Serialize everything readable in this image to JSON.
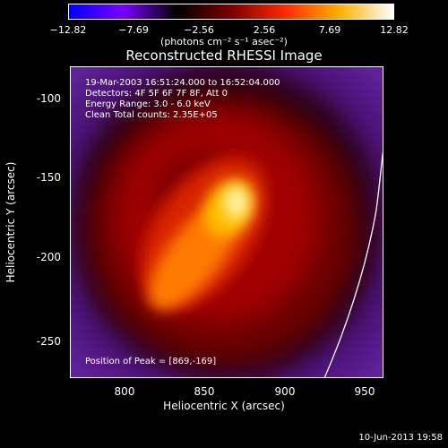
{
  "colorbar": {
    "ticks": [
      "−12.82",
      "−7.69",
      "−2.56",
      "2.56",
      "7.69",
      "12.82"
    ],
    "unit": "(photons cm⁻² s⁻¹ asec⁻²)",
    "min": -12.82,
    "max": 12.82,
    "colors": [
      "#0000ff",
      "#7a00ff",
      "#000000",
      "#7a0000",
      "#ff2a00",
      "#ffb000",
      "#ffffff"
    ]
  },
  "title": "Reconstructed RHESSI Image",
  "annotations": {
    "time_range": "19-Mar-2003 16:51:24.000 to 16:52:04.000",
    "detectors": "Detectors: 4F 5F 6F 7F 8F, Att 0",
    "energy": "Energy Range: 3.0 - 6.0 keV",
    "clean": "Clean     Total counts: 2.35E+05",
    "peak": "Position of Peak = [869,-169]"
  },
  "axes": {
    "x_label": "Heliocentric X (arcsec)",
    "y_label": "Heliocentric Y (arcsec)",
    "x_ticks": [
      "800",
      "850",
      "900",
      "950"
    ],
    "y_ticks": [
      "-100",
      "-150",
      "-200",
      "-250"
    ],
    "x_range": [
      764,
      960
    ],
    "y_range": [
      -275,
      -80
    ]
  },
  "timestamp": "10-Jun-2013 19:58",
  "chart_data": {
    "type": "heatmap",
    "title": "Reconstructed RHESSI Image",
    "xlabel": "Heliocentric X (arcsec)",
    "ylabel": "Heliocentric Y (arcsec)",
    "xlim": [
      764,
      960
    ],
    "ylim": [
      -275,
      -80
    ],
    "peak": [
      869,
      -169
    ]
  }
}
